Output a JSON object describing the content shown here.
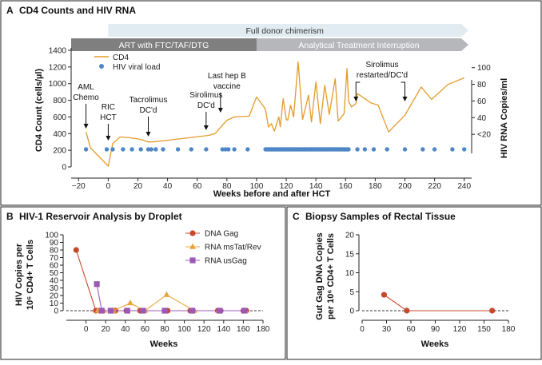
{
  "chart_data": [
    {
      "id": "A",
      "type": "line",
      "panel_letter": "A",
      "title": "CD4 Counts and HIV RNA",
      "xlabel": "Weeks before and after HCT",
      "ylabel": "CD4 Count (cells/µl)",
      "y2label": "HIV RNA Copies/ml",
      "xlim": [
        -25,
        245
      ],
      "ylim": [
        0,
        1400
      ],
      "xticks": [
        "−20",
        "0",
        "20",
        "40",
        "60",
        "80",
        "100",
        "120",
        "140",
        "160",
        "180",
        "200",
        "220",
        "240"
      ],
      "xtick_values": [
        -20,
        0,
        20,
        40,
        60,
        80,
        100,
        120,
        140,
        160,
        180,
        200,
        220,
        240
      ],
      "yticks": [
        "0",
        "200",
        "400",
        "600",
        "800",
        "1000",
        "1200",
        "1400"
      ],
      "ytick_values": [
        0,
        200,
        400,
        600,
        800,
        1000,
        1200,
        1400
      ],
      "y2ticks": [
        "<20",
        "40",
        "60",
        "80",
        "100"
      ],
      "y2tick_values": [
        200,
        400,
        600,
        800,
        1000
      ],
      "bars": [
        {
          "label": "Full donor chimerism",
          "start": 0,
          "end": 245
        },
        {
          "label": "ART with FTC/TAF/DTG",
          "start": -25,
          "end": 100
        },
        {
          "label": "Analytical Treatment Interruption",
          "start": 100,
          "end": 245
        }
      ],
      "legend": [
        {
          "label": "CD4",
          "marker": "line",
          "color": "#E39A2B"
        },
        {
          "label": "HIV viral load",
          "marker": "dot",
          "color": "#4F87C6"
        }
      ],
      "series": [
        {
          "name": "CD4",
          "color": "#E39A2B",
          "points": [
            [
              -15,
              420
            ],
            [
              -12,
              230
            ],
            [
              0,
              10
            ],
            [
              3,
              280
            ],
            [
              8,
              360
            ],
            [
              15,
              350
            ],
            [
              22,
              330
            ],
            [
              27,
              300
            ],
            [
              30,
              300
            ],
            [
              40,
              320
            ],
            [
              66,
              375
            ],
            [
              68,
              380
            ],
            [
              72,
              400
            ],
            [
              80,
              560
            ],
            [
              85,
              600
            ],
            [
              95,
              610
            ],
            [
              100,
              840
            ],
            [
              105,
              720
            ],
            [
              106,
              690
            ],
            [
              108,
              480
            ],
            [
              110,
              520
            ],
            [
              112,
              430
            ],
            [
              115,
              600
            ],
            [
              116,
              480
            ],
            [
              118,
              820
            ],
            [
              120,
              570
            ],
            [
              121,
              560
            ],
            [
              123,
              740
            ],
            [
              125,
              600
            ],
            [
              128,
              1260
            ],
            [
              131,
              570
            ],
            [
              135,
              860
            ],
            [
              137,
              540
            ],
            [
              140,
              1020
            ],
            [
              143,
              520
            ],
            [
              146,
              980
            ],
            [
              149,
              630
            ],
            [
              153,
              1060
            ],
            [
              155,
              550
            ],
            [
              159,
              640
            ],
            [
              161,
              1180
            ],
            [
              162,
              790
            ],
            [
              164,
              720
            ],
            [
              167,
              760
            ],
            [
              168,
              880
            ],
            [
              177,
              770
            ],
            [
              182,
              740
            ],
            [
              189,
              420
            ],
            [
              200,
              620
            ],
            [
              211,
              960
            ],
            [
              218,
              810
            ],
            [
              229,
              990
            ],
            [
              240,
              1070
            ]
          ]
        },
        {
          "name": "HIV viral load",
          "color": "#4F87C6",
          "x": [
            -15,
            -1,
            3,
            10,
            16,
            22,
            27,
            29,
            32,
            37,
            47,
            56,
            66,
            77,
            79,
            81,
            85,
            94,
            106,
            107,
            108,
            109,
            110,
            111,
            112,
            113,
            114,
            115,
            116,
            117,
            118,
            119,
            120,
            121,
            122,
            123,
            124,
            125,
            126,
            127,
            128,
            129,
            130,
            131,
            132,
            133,
            134,
            135,
            136,
            137,
            138,
            139,
            140,
            141,
            142,
            143,
            144,
            145,
            146,
            147,
            148,
            149,
            150,
            151,
            152,
            153,
            154,
            155,
            156,
            157,
            158,
            159,
            160,
            161,
            162,
            168,
            173,
            179,
            188,
            200,
            212,
            220,
            232,
            240
          ],
          "y_value": "<20"
        }
      ],
      "annotations": [
        {
          "text": "AML",
          "x": -15
        },
        {
          "text": "Chemo",
          "x": -15
        },
        {
          "text": "RIC",
          "x": 0
        },
        {
          "text": "HCT",
          "x": 0
        },
        {
          "text": "Tacrolimus",
          "x": 27
        },
        {
          "text": "DC'd",
          "x": 27
        },
        {
          "text": "Sirolimus",
          "x": 66
        },
        {
          "text": "DC'd",
          "x": 66
        },
        {
          "text": "Last hep B",
          "x": 80
        },
        {
          "text": "vaccine",
          "x": 80
        },
        {
          "text": "Sirolimus",
          "x": 190
        },
        {
          "text": "restarted/DC'd",
          "x": 190
        }
      ]
    },
    {
      "id": "B",
      "type": "line",
      "panel_letter": "B",
      "title": "HIV-1 Reservoir Analysis by Droplet",
      "xlabel": "Weeks",
      "ylabel_line1": "HIV Copies per",
      "ylabel_line2": "10⁶ CD4+ T Cells",
      "xlim": [
        -20,
        180
      ],
      "ylim": [
        0,
        100
      ],
      "xticks": [
        "0",
        "20",
        "40",
        "60",
        "80",
        "100",
        "120",
        "140",
        "160",
        "180"
      ],
      "xtick_values": [
        0,
        20,
        40,
        60,
        80,
        100,
        120,
        140,
        160,
        180
      ],
      "yticks": [
        "0",
        "10",
        "20",
        "30",
        "40",
        "50",
        "60",
        "70",
        "80",
        "90",
        "100"
      ],
      "ytick_values": [
        0,
        10,
        20,
        30,
        40,
        50,
        60,
        70,
        80,
        90,
        100
      ],
      "series": [
        {
          "name": "DNA Gag",
          "marker": "circle",
          "color": "#C9472B",
          "x": [
            -10,
            10,
            14,
            27,
            30,
            41,
            55,
            58,
            80,
            83,
            106,
            109,
            134,
            137,
            160,
            163
          ],
          "values": [
            80,
            0,
            0,
            0,
            0,
            0,
            0,
            0,
            0,
            0,
            0,
            0,
            0,
            0,
            0,
            0
          ]
        },
        {
          "name": "RNA msTat/Rev",
          "marker": "triangle",
          "color": "#EBA43B",
          "x": [
            12,
            18,
            28,
            45,
            60,
            82,
            110,
            135,
            162
          ],
          "values": [
            0,
            0,
            0,
            10,
            0,
            21,
            0,
            0,
            0
          ]
        },
        {
          "name": "RNA usGag",
          "marker": "square",
          "color": "#9B59B6",
          "x": [
            11,
            16,
            25,
            42,
            58,
            80,
            108,
            136,
            161
          ],
          "values": [
            35,
            0,
            0,
            0,
            0,
            0,
            0,
            0,
            0
          ]
        }
      ]
    },
    {
      "id": "C",
      "type": "line",
      "panel_letter": "C",
      "title": "Biopsy Samples of Rectal Tissue",
      "xlabel": "Weeks",
      "ylabel_line1": "Gut Gag DNA Copies",
      "ylabel_line2": "per 10⁶ CD4+ T Cells",
      "xlim": [
        0,
        180
      ],
      "ylim": [
        0,
        20
      ],
      "xticks": [
        "0",
        "30",
        "60",
        "90",
        "120",
        "150",
        "180"
      ],
      "xtick_values": [
        0,
        30,
        60,
        90,
        120,
        150,
        180
      ],
      "yticks": [
        "0",
        "5",
        "10",
        "15",
        "20"
      ],
      "ytick_values": [
        0,
        5,
        10,
        15,
        20
      ],
      "series": [
        {
          "name": "Gut Gag DNA",
          "marker": "circle",
          "color": "#C9472B",
          "x": [
            27,
            55,
            160
          ],
          "values": [
            4.2,
            0,
            0
          ]
        }
      ]
    }
  ]
}
